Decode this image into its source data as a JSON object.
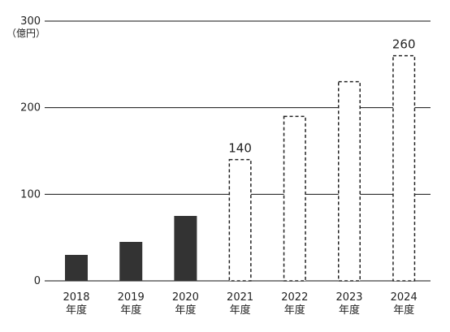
{
  "chart_data": {
    "type": "bar",
    "unit_label": "（億円）",
    "categories": [
      "2018",
      "2019",
      "2020",
      "2021",
      "2022",
      "2023",
      "2024"
    ],
    "category_suffix": "年度",
    "values": [
      30,
      45,
      75,
      140,
      190,
      230,
      260
    ],
    "value_kinds": [
      "actual",
      "actual",
      "actual",
      "forecast",
      "forecast",
      "forecast",
      "forecast"
    ],
    "data_labels": [
      "",
      "",
      "",
      "140",
      "",
      "",
      "260"
    ],
    "y_ticks": [
      "0",
      "100",
      "200",
      "300"
    ],
    "ylim": [
      0,
      300
    ],
    "grid": true,
    "colors": {
      "actual_fill": "#333333",
      "forecast_stroke": "#222222",
      "grid": "#111111"
    }
  }
}
